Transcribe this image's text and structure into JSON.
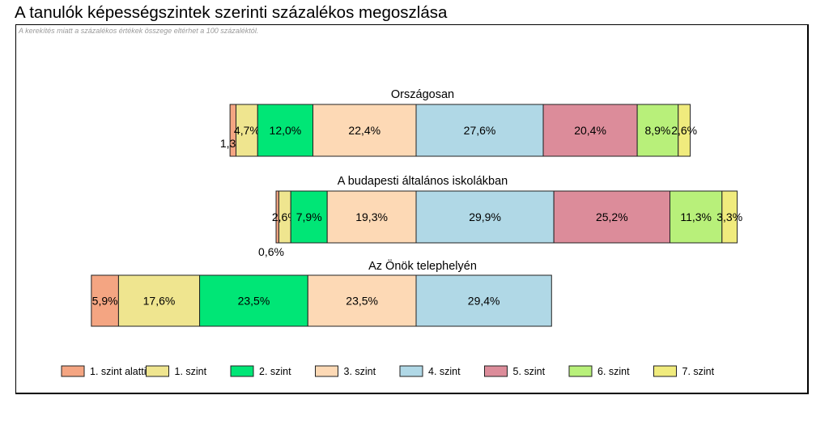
{
  "title": "A tanulók képességszintek szerinti százalékos megoszlása",
  "note": "A kerekítés miatt a százalékos értékek összege eltérhet a 100 százaléktól.",
  "chart_data": {
    "type": "bar",
    "stacked": true,
    "orientation": "horizontal",
    "categories": [
      "1. szint alatti",
      "1. szint",
      "2. szint",
      "3. szint",
      "4. szint",
      "5. szint",
      "6. szint",
      "7. szint"
    ],
    "colors": [
      "#f4a582",
      "#efe58f",
      "#00e676",
      "#fdd9b5",
      "#b0d8e6",
      "#dc8c9a",
      "#b8f07a",
      "#f0eb7d"
    ],
    "rows": [
      {
        "name": "Országosan",
        "values": [
          1.3,
          4.7,
          12.0,
          22.4,
          27.6,
          20.4,
          8.9,
          2.6
        ],
        "labels": [
          "1,3%",
          "4,7%",
          "12,0%",
          "22,4%",
          "27,6%",
          "20,4%",
          "8,9%",
          "2,6%"
        ]
      },
      {
        "name": "A budapesti általános iskolákban",
        "values": [
          0.6,
          2.6,
          7.9,
          19.3,
          29.9,
          25.2,
          11.3,
          3.3
        ],
        "labels": [
          "0,6%",
          "2,6%",
          "7,9%",
          "19,3%",
          "29,9%",
          "25,2%",
          "11,3%",
          "3,3%"
        ]
      },
      {
        "name": "Az Önök telephelyén",
        "values": [
          5.9,
          17.6,
          23.5,
          23.5,
          29.4,
          0,
          0,
          0
        ],
        "labels": [
          "5,9%",
          "17,6%",
          "23,5%",
          "23,5%",
          "29,4%",
          "",
          "",
          ""
        ]
      }
    ],
    "legend_position": "bottom",
    "grid": false
  }
}
